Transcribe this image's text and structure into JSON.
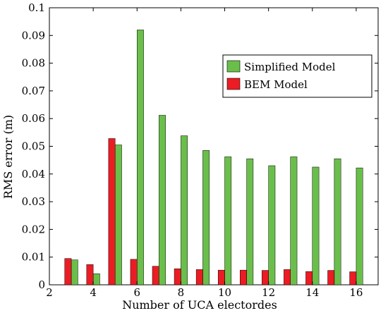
{
  "chart_data": {
    "type": "bar",
    "x": [
      3,
      4,
      5,
      6,
      7,
      8,
      9,
      10,
      11,
      12,
      13,
      14,
      15,
      16
    ],
    "series": [
      {
        "name": "Simplified Model",
        "color": "#6abf4b",
        "values": [
          0.009,
          0.004,
          0.0505,
          0.092,
          0.0612,
          0.0538,
          0.0485,
          0.0462,
          0.0455,
          0.043,
          0.0462,
          0.0425,
          0.0455,
          0.0422
        ]
      },
      {
        "name": "BEM Model",
        "color": "#ec1c24",
        "values": [
          0.0095,
          0.0073,
          0.0528,
          0.0092,
          0.0067,
          0.0058,
          0.0055,
          0.0053,
          0.0053,
          0.0052,
          0.0055,
          0.0048,
          0.0052,
          0.0047
        ]
      }
    ],
    "xlabel": "Number of UCA electordes",
    "ylabel": "RMS error (m)",
    "xlim": [
      2,
      17
    ],
    "ylim": [
      0,
      0.1
    ],
    "xticks": [
      2,
      4,
      6,
      8,
      10,
      12,
      14,
      16
    ],
    "xtick_labels": [
      "2",
      "4",
      "6",
      "8",
      "10",
      "12",
      "14",
      "16"
    ],
    "yticks": [
      0,
      0.01,
      0.02,
      0.03,
      0.04,
      0.05,
      0.06,
      0.07,
      0.08,
      0.09,
      0.1
    ],
    "ytick_labels": [
      "0",
      "0.01",
      "0.02",
      "0.03",
      "0.04",
      "0.05",
      "0.06",
      "0.07",
      "0.08",
      "0.09",
      "0.1"
    ],
    "grid": false,
    "legend_position": "top-right"
  }
}
